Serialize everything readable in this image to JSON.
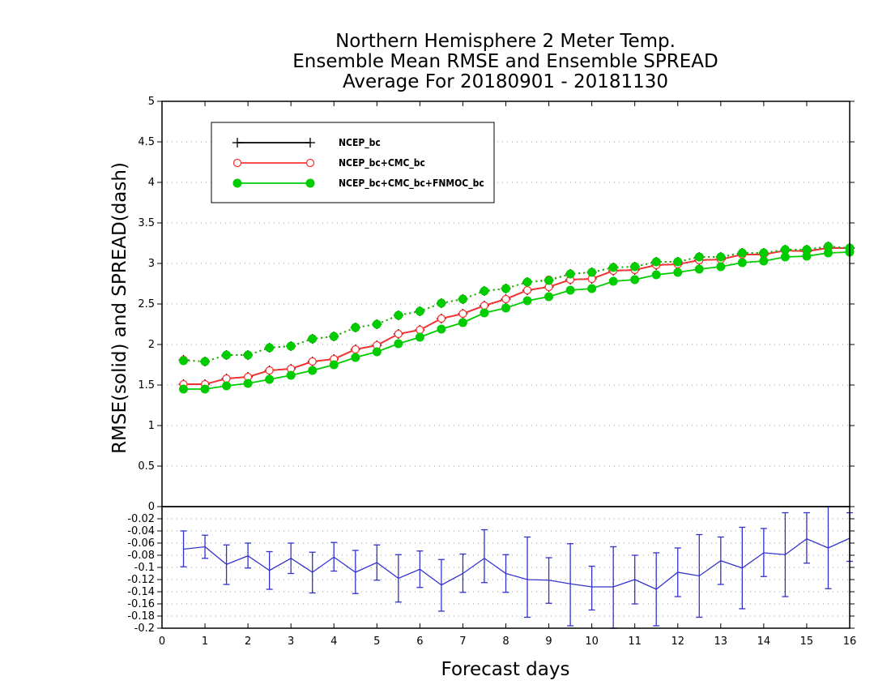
{
  "chart_data": [
    {
      "type": "line",
      "title": [
        "Northern Hemisphere 2 Meter Temp.",
        "Ensemble Mean RMSE and Ensemble SPREAD",
        "Average For 20180901 - 20181130"
      ],
      "ylabel": "RMSE(solid) and SPREAD(dash)",
      "ylim": [
        0,
        5
      ],
      "y_ticks": [
        "5",
        "4.5",
        "4",
        "3.5",
        "3",
        "2.5",
        "2",
        "1.5",
        "1",
        "0.5",
        "0"
      ],
      "xlim": [
        0,
        16
      ],
      "grid": true,
      "legend_placement": "top-left",
      "x": [
        0.5,
        1,
        1.5,
        2,
        2.5,
        3,
        3.5,
        4,
        4.5,
        5,
        5.5,
        6,
        6.5,
        7,
        7.5,
        8,
        8.5,
        9,
        9.5,
        10,
        10.5,
        11,
        11.5,
        12,
        12.5,
        13,
        13.5,
        14,
        14.5,
        15,
        15.5,
        16
      ],
      "series": [
        {
          "name": "NCEP_bc",
          "color": "#000000",
          "marker": "plus",
          "rmse": [
            1.51,
            1.51,
            1.58,
            1.6,
            1.68,
            1.7,
            1.79,
            1.82,
            1.94,
            1.99,
            2.13,
            2.18,
            2.32,
            2.38,
            2.48,
            2.56,
            2.67,
            2.71,
            2.8,
            2.81,
            2.91,
            2.92,
            2.98,
            2.99,
            3.04,
            3.05,
            3.11,
            3.11,
            3.16,
            3.15,
            3.19,
            3.19
          ],
          "spread": [
            1.81,
            1.79,
            1.87,
            1.87,
            1.96,
            1.98,
            2.07,
            2.1,
            2.21,
            2.25,
            2.36,
            2.41,
            2.51,
            2.56,
            2.66,
            2.69,
            2.77,
            2.79,
            2.87,
            2.89,
            2.95,
            2.96,
            3.02,
            3.02,
            3.08,
            3.08,
            3.13,
            3.13,
            3.17,
            3.17,
            3.21,
            3.19
          ]
        },
        {
          "name": "NCEP_bc+CMC_bc",
          "color": "#ff3333",
          "marker": "open-circle",
          "rmse": [
            1.51,
            1.51,
            1.58,
            1.6,
            1.68,
            1.7,
            1.79,
            1.82,
            1.94,
            1.99,
            2.13,
            2.18,
            2.32,
            2.38,
            2.48,
            2.56,
            2.67,
            2.71,
            2.8,
            2.81,
            2.91,
            2.92,
            2.98,
            2.99,
            3.04,
            3.05,
            3.11,
            3.11,
            3.16,
            3.15,
            3.19,
            3.19
          ],
          "spread": [
            1.81,
            1.79,
            1.87,
            1.87,
            1.96,
            1.98,
            2.07,
            2.1,
            2.21,
            2.25,
            2.36,
            2.41,
            2.51,
            2.56,
            2.66,
            2.69,
            2.77,
            2.8,
            2.87,
            2.89,
            2.95,
            2.96,
            3.02,
            3.02,
            3.08,
            3.08,
            3.13,
            3.13,
            3.17,
            3.17,
            3.21,
            3.19
          ]
        },
        {
          "name": "NCEP_bc+CMC_bc+FNMOC_bc",
          "color": "#00cc00",
          "marker": "filled-circle",
          "rmse": [
            1.45,
            1.45,
            1.49,
            1.52,
            1.57,
            1.62,
            1.68,
            1.75,
            1.84,
            1.91,
            2.01,
            2.09,
            2.19,
            2.27,
            2.39,
            2.45,
            2.54,
            2.59,
            2.67,
            2.69,
            2.78,
            2.8,
            2.86,
            2.89,
            2.93,
            2.96,
            3.01,
            3.03,
            3.08,
            3.09,
            3.13,
            3.14
          ],
          "spread": [
            1.8,
            1.79,
            1.87,
            1.87,
            1.96,
            1.98,
            2.07,
            2.1,
            2.21,
            2.25,
            2.36,
            2.41,
            2.51,
            2.56,
            2.66,
            2.69,
            2.77,
            2.79,
            2.87,
            2.89,
            2.95,
            2.96,
            3.02,
            3.02,
            3.08,
            3.08,
            3.13,
            3.13,
            3.17,
            3.17,
            3.21,
            3.19
          ]
        }
      ]
    },
    {
      "type": "line",
      "xlabel": "Forecast days",
      "xlim": [
        0,
        16
      ],
      "x_ticks": [
        "0",
        "1",
        "2",
        "3",
        "4",
        "5",
        "6",
        "7",
        "8",
        "9",
        "10",
        "11",
        "12",
        "13",
        "14",
        "15",
        "16"
      ],
      "ylim": [
        -0.2,
        0
      ],
      "y_ticks": [
        "0",
        "-0.02",
        "-0.04",
        "-0.06",
        "-0.08",
        "-0.1",
        "-0.12",
        "-0.14",
        "-0.16",
        "-0.18",
        "-0.2"
      ],
      "grid": true,
      "series": [
        {
          "color": "#3333cc",
          "x": [
            0.5,
            1,
            1.5,
            2,
            2.5,
            3,
            3.5,
            4,
            4.5,
            5,
            5.5,
            6,
            6.5,
            7,
            7.5,
            8,
            8.5,
            9,
            9.5,
            10,
            10.5,
            11,
            11.5,
            12,
            12.5,
            13,
            13.5,
            14,
            14.5,
            15,
            15.5,
            16
          ],
          "values": [
            -0.07,
            -0.066,
            -0.095,
            -0.081,
            -0.105,
            -0.085,
            -0.108,
            -0.083,
            -0.108,
            -0.092,
            -0.118,
            -0.103,
            -0.129,
            -0.11,
            -0.085,
            -0.11,
            -0.12,
            -0.121,
            -0.127,
            -0.132,
            -0.132,
            -0.12,
            -0.136,
            -0.108,
            -0.114,
            -0.089,
            -0.101,
            -0.076,
            -0.079,
            -0.053,
            -0.068,
            -0.052
          ],
          "err_low": [
            -0.099,
            -0.085,
            -0.128,
            -0.101,
            -0.136,
            -0.11,
            -0.142,
            -0.106,
            -0.143,
            -0.121,
            -0.157,
            -0.133,
            -0.172,
            -0.141,
            -0.125,
            -0.141,
            -0.182,
            -0.159,
            -0.196,
            -0.17,
            -0.2,
            -0.16,
            -0.196,
            -0.148,
            -0.182,
            -0.128,
            -0.168,
            -0.115,
            -0.148,
            -0.093,
            -0.135,
            -0.09
          ],
          "err_high": [
            -0.04,
            -0.047,
            -0.063,
            -0.06,
            -0.074,
            -0.06,
            -0.075,
            -0.059,
            -0.072,
            -0.063,
            -0.079,
            -0.073,
            -0.087,
            -0.078,
            -0.038,
            -0.079,
            -0.05,
            -0.084,
            -0.061,
            -0.098,
            -0.066,
            -0.08,
            -0.076,
            -0.068,
            -0.046,
            -0.05,
            -0.034,
            -0.036,
            -0.01,
            -0.01,
            0.0,
            -0.01
          ]
        }
      ]
    }
  ]
}
